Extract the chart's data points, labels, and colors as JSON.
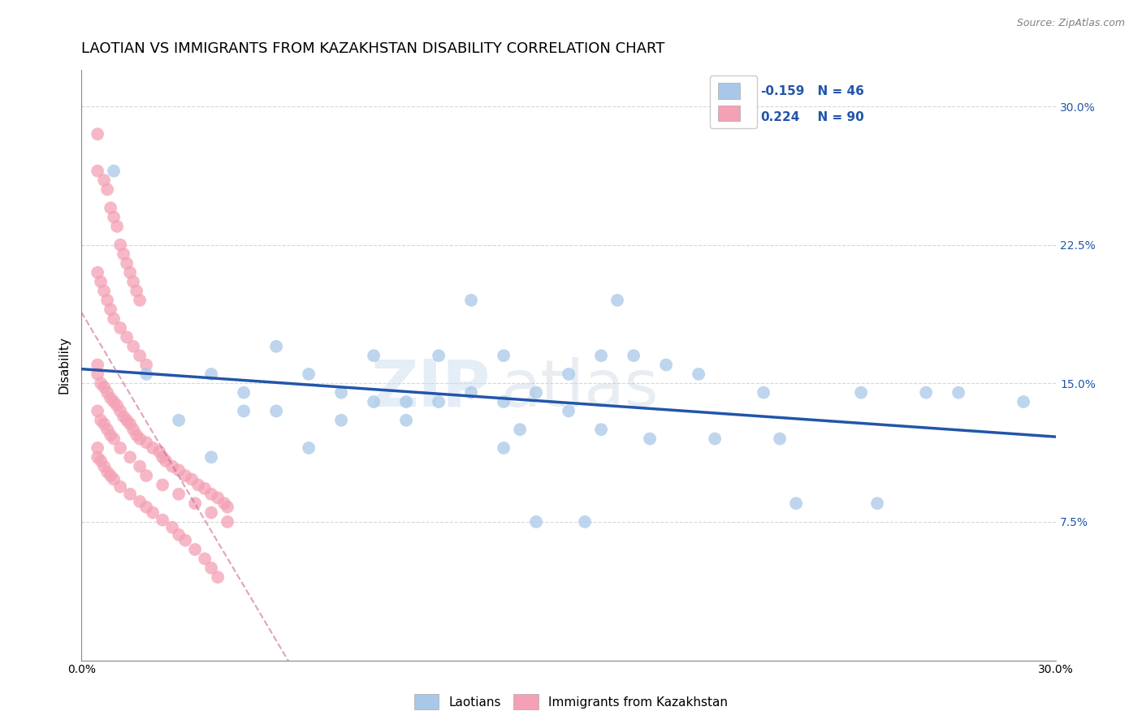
{
  "title": "LAOTIAN VS IMMIGRANTS FROM KAZAKHSTAN DISABILITY CORRELATION CHART",
  "source_text": "Source: ZipAtlas.com",
  "xlabel": "",
  "ylabel": "Disability",
  "legend_label_blue": "Laotians",
  "legend_label_pink": "Immigrants from Kazakhstan",
  "R_blue": -0.159,
  "N_blue": 46,
  "R_pink": 0.224,
  "N_pink": 90,
  "xlim": [
    0.0,
    0.3
  ],
  "ylim": [
    0.0,
    0.32
  ],
  "xtick_labels": [
    "0.0%",
    "30.0%"
  ],
  "ytick_positions": [
    0.075,
    0.15,
    0.225,
    0.3
  ],
  "ytick_labels": [
    "7.5%",
    "15.0%",
    "22.5%",
    "30.0%"
  ],
  "blue_color": "#A8C8E8",
  "pink_color": "#F4A0B5",
  "blue_line_color": "#2255AA",
  "pink_line_color": "#CC6688",
  "watermark_zip": "ZIP",
  "watermark_atlas": "atlas",
  "title_fontsize": 13,
  "axis_label_fontsize": 11,
  "tick_fontsize": 10,
  "blue_scatter_x": [
    0.01,
    0.12,
    0.165,
    0.02,
    0.04,
    0.06,
    0.09,
    0.11,
    0.13,
    0.16,
    0.17,
    0.18,
    0.19,
    0.21,
    0.24,
    0.26,
    0.27,
    0.29,
    0.05,
    0.07,
    0.08,
    0.1,
    0.12,
    0.14,
    0.15,
    0.06,
    0.09,
    0.11,
    0.13,
    0.15,
    0.03,
    0.05,
    0.08,
    0.1,
    0.22,
    0.245,
    0.14,
    0.155,
    0.135,
    0.16,
    0.175,
    0.195,
    0.215,
    0.13,
    0.07,
    0.04
  ],
  "blue_scatter_y": [
    0.265,
    0.195,
    0.195,
    0.155,
    0.155,
    0.17,
    0.165,
    0.165,
    0.165,
    0.165,
    0.165,
    0.16,
    0.155,
    0.145,
    0.145,
    0.145,
    0.145,
    0.14,
    0.145,
    0.155,
    0.145,
    0.14,
    0.145,
    0.145,
    0.155,
    0.135,
    0.14,
    0.14,
    0.14,
    0.135,
    0.13,
    0.135,
    0.13,
    0.13,
    0.085,
    0.085,
    0.075,
    0.075,
    0.125,
    0.125,
    0.12,
    0.12,
    0.12,
    0.115,
    0.115,
    0.11
  ],
  "pink_scatter_x": [
    0.005,
    0.005,
    0.007,
    0.008,
    0.009,
    0.01,
    0.011,
    0.012,
    0.013,
    0.014,
    0.015,
    0.016,
    0.017,
    0.018,
    0.005,
    0.006,
    0.007,
    0.008,
    0.009,
    0.01,
    0.012,
    0.014,
    0.016,
    0.018,
    0.02,
    0.005,
    0.005,
    0.006,
    0.007,
    0.008,
    0.009,
    0.01,
    0.011,
    0.012,
    0.013,
    0.014,
    0.015,
    0.016,
    0.017,
    0.018,
    0.02,
    0.022,
    0.024,
    0.025,
    0.026,
    0.028,
    0.03,
    0.032,
    0.034,
    0.036,
    0.038,
    0.04,
    0.042,
    0.044,
    0.045,
    0.005,
    0.006,
    0.007,
    0.008,
    0.009,
    0.01,
    0.012,
    0.015,
    0.018,
    0.02,
    0.025,
    0.03,
    0.035,
    0.04,
    0.045,
    0.005,
    0.005,
    0.006,
    0.007,
    0.008,
    0.009,
    0.01,
    0.012,
    0.015,
    0.018,
    0.02,
    0.022,
    0.025,
    0.028,
    0.03,
    0.032,
    0.035,
    0.038,
    0.04,
    0.042
  ],
  "pink_scatter_y": [
    0.285,
    0.265,
    0.26,
    0.255,
    0.245,
    0.24,
    0.235,
    0.225,
    0.22,
    0.215,
    0.21,
    0.205,
    0.2,
    0.195,
    0.21,
    0.205,
    0.2,
    0.195,
    0.19,
    0.185,
    0.18,
    0.175,
    0.17,
    0.165,
    0.16,
    0.16,
    0.155,
    0.15,
    0.148,
    0.145,
    0.142,
    0.14,
    0.138,
    0.135,
    0.132,
    0.13,
    0.128,
    0.125,
    0.122,
    0.12,
    0.118,
    0.115,
    0.113,
    0.11,
    0.108,
    0.105,
    0.103,
    0.1,
    0.098,
    0.095,
    0.093,
    0.09,
    0.088,
    0.085,
    0.083,
    0.135,
    0.13,
    0.128,
    0.125,
    0.122,
    0.12,
    0.115,
    0.11,
    0.105,
    0.1,
    0.095,
    0.09,
    0.085,
    0.08,
    0.075,
    0.115,
    0.11,
    0.108,
    0.105,
    0.102,
    0.1,
    0.098,
    0.094,
    0.09,
    0.086,
    0.083,
    0.08,
    0.076,
    0.072,
    0.068,
    0.065,
    0.06,
    0.055,
    0.05,
    0.045
  ]
}
